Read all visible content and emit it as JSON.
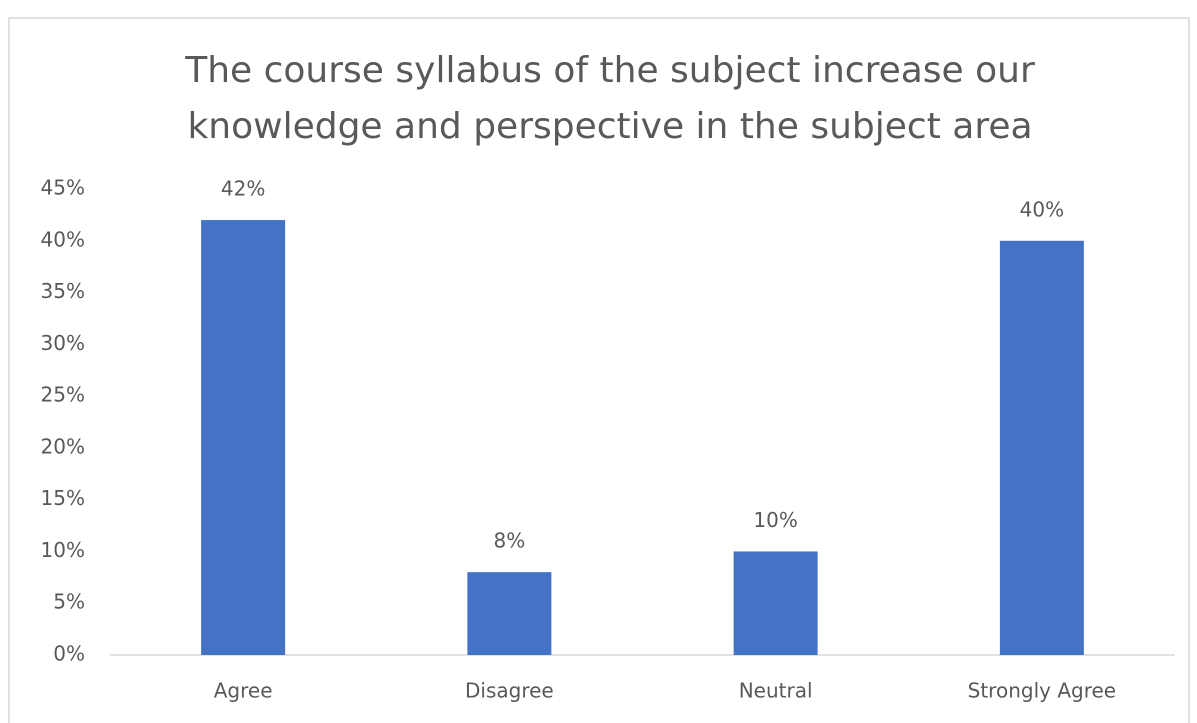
{
  "chart_data": {
    "type": "bar",
    "title": [
      "The course syllabus of the subject increase our",
      "knowledge and perspective in the subject area"
    ],
    "categories": [
      "Agree",
      "Disagree",
      "Neutral",
      "Strongly Agree"
    ],
    "values": [
      42,
      8,
      10,
      40
    ],
    "value_labels": [
      "42%",
      "8%",
      "10%",
      "40%"
    ],
    "color": "#4472c4",
    "ylim": [
      0,
      45
    ],
    "yticks": [
      {
        "value": 0,
        "label": "0%"
      },
      {
        "value": 5,
        "label": "5%"
      },
      {
        "value": 10,
        "label": "10%"
      },
      {
        "value": 15,
        "label": "15%"
      },
      {
        "value": 20,
        "label": "20%"
      },
      {
        "value": 25,
        "label": "25%"
      },
      {
        "value": 30,
        "label": "30%"
      },
      {
        "value": 35,
        "label": "35%"
      },
      {
        "value": 40,
        "label": "40%"
      },
      {
        "value": 45,
        "label": "45%"
      }
    ],
    "grid": false
  }
}
